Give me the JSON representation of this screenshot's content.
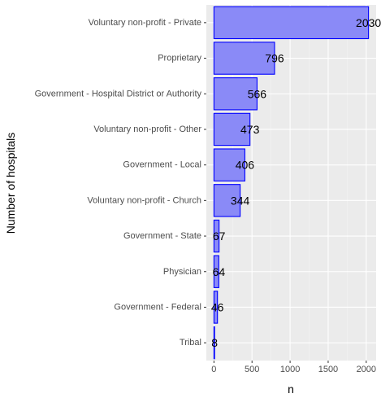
{
  "chart_data": {
    "type": "bar",
    "orientation": "horizontal",
    "categories": [
      "Voluntary non-profit - Private",
      "Proprietary",
      "Government - Hospital District or Authority",
      "Voluntary non-profit - Other",
      "Government - Local",
      "Voluntary non-profit - Church",
      "Government - State",
      "Physician",
      "Government - Federal",
      "Tribal"
    ],
    "values": [
      2030,
      796,
      566,
      473,
      406,
      344,
      67,
      64,
      46,
      8
    ],
    "data_labels": [
      "2030",
      "796",
      "566",
      "473",
      "406",
      "344",
      "67",
      "64",
      "46",
      "8"
    ],
    "xlabel": "n",
    "ylabel": "Number of hospitals",
    "xlim": [
      -100,
      2130
    ],
    "xticks": [
      0,
      500,
      1000,
      1500,
      2000
    ],
    "xtick_labels": [
      "0",
      "500",
      "1000",
      "1500",
      "2000"
    ],
    "grid": true,
    "colors": {
      "panel_bg": "#ebebeb",
      "grid_major": "#ffffff",
      "grid_minor": "#f4f4f4",
      "bar_fill": "#8a8af7",
      "bar_stroke": "#0000ff"
    }
  }
}
